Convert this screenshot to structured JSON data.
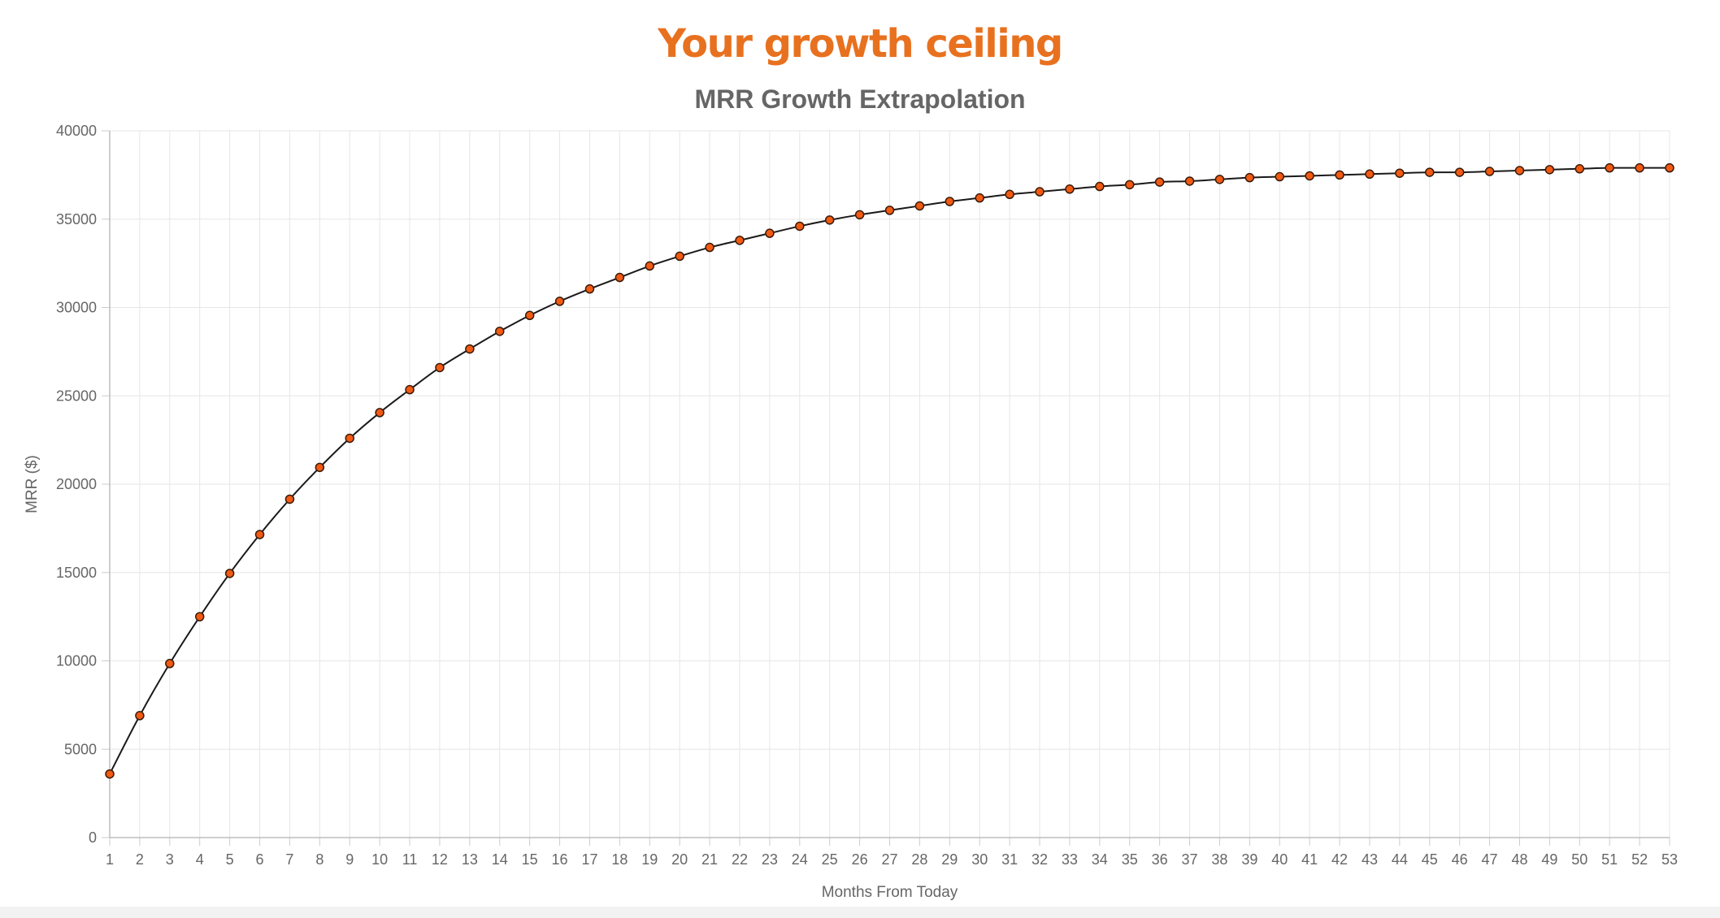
{
  "header": {
    "title": "Your growth ceiling",
    "title_color": "#e8711f"
  },
  "chart_data": {
    "type": "line",
    "title": "MRR Growth Extrapolation",
    "xlabel": "Months From Today",
    "ylabel": "MRR ($)",
    "ylim": [
      0,
      40000
    ],
    "y_ticks": [
      0,
      5000,
      10000,
      15000,
      20000,
      25000,
      30000,
      35000,
      40000
    ],
    "grid": true,
    "legend": "none",
    "categories": [
      "1",
      "2",
      "3",
      "4",
      "5",
      "6",
      "7",
      "8",
      "9",
      "10",
      "11",
      "12",
      "13",
      "14",
      "15",
      "16",
      "17",
      "18",
      "19",
      "20",
      "21",
      "22",
      "23",
      "24",
      "25",
      "26",
      "27",
      "28",
      "29",
      "30",
      "31",
      "32",
      "33",
      "34",
      "35",
      "36",
      "37",
      "38",
      "39",
      "40",
      "41",
      "42",
      "43",
      "44",
      "45",
      "46",
      "47",
      "48",
      "49",
      "50",
      "51",
      "52",
      "53"
    ],
    "series": [
      {
        "line_color": "#1a1a1a",
        "point_color": "#f25a12",
        "point_border_color": "#3a1a0a",
        "values": [
          3600,
          6900,
          9850,
          12500,
          14950,
          17150,
          19150,
          20950,
          22600,
          24050,
          25350,
          26600,
          27650,
          28650,
          29550,
          30350,
          31050,
          31700,
          32350,
          32900,
          33400,
          33800,
          34200,
          34600,
          34950,
          35250,
          35500,
          35750,
          36000,
          36200,
          36400,
          36550,
          36700,
          36850,
          36950,
          37100,
          37150,
          37250,
          37350,
          37400,
          37450,
          37500,
          37550,
          37600,
          37650,
          37650,
          37700,
          37750,
          37800,
          37850,
          37900,
          37900,
          37900
        ]
      }
    ]
  }
}
